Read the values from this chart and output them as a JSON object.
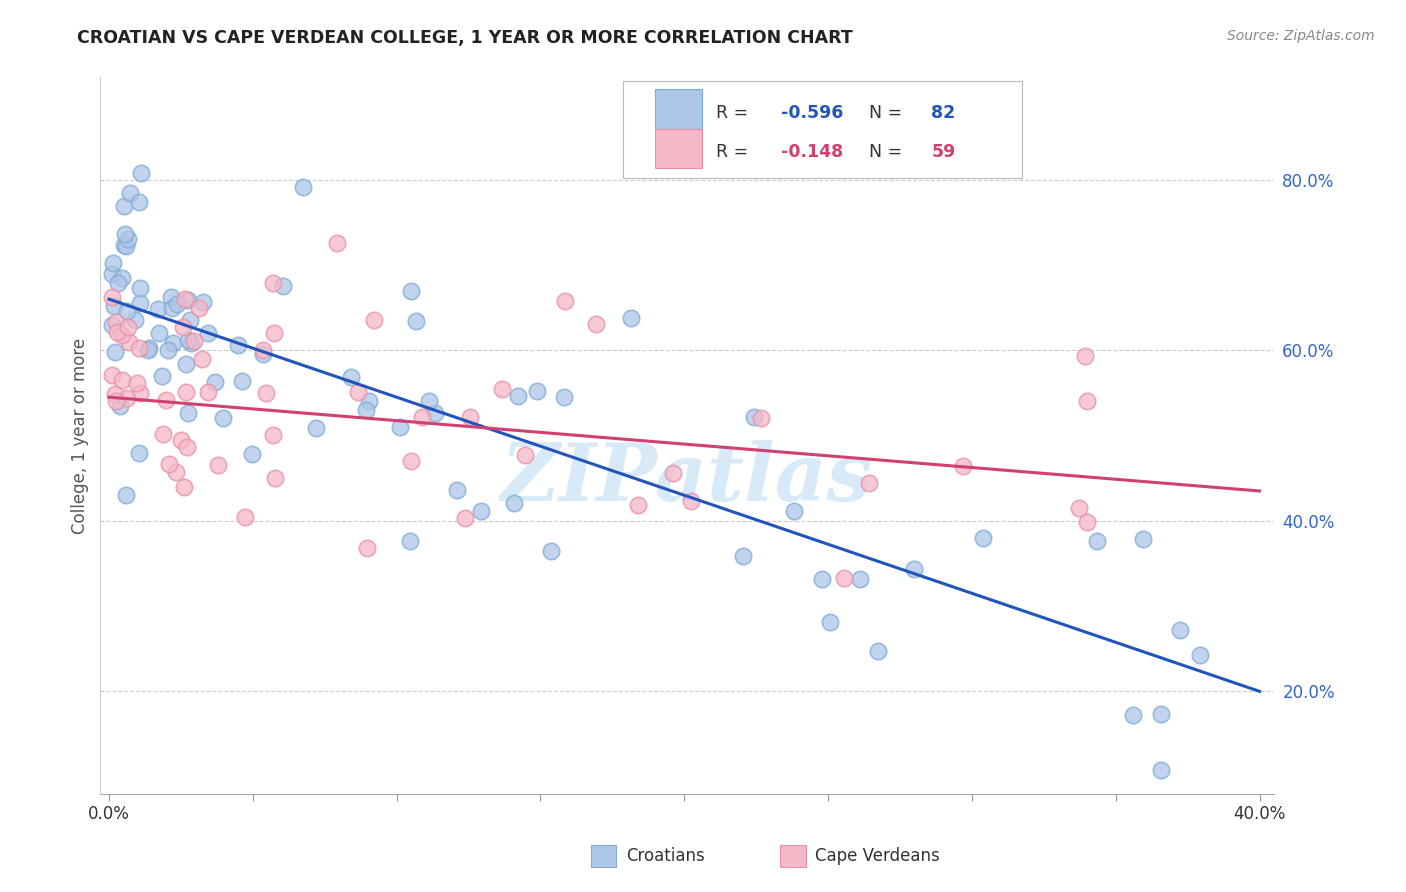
{
  "title": "CROATIAN VS CAPE VERDEAN COLLEGE, 1 YEAR OR MORE CORRELATION CHART",
  "source": "Source: ZipAtlas.com",
  "ylabel": "College, 1 year or more",
  "watermark": "ZIPatlas",
  "legend_croatian_R": -0.596,
  "legend_croatian_N": 82,
  "legend_croatian_label": "Croatians",
  "legend_capeverdean_R": -0.148,
  "legend_capeverdean_N": 59,
  "legend_capeverdean_label": "Cape Verdeans",
  "croatian_face_color": "#aec6e8",
  "croatian_edge_color": "#7fabd4",
  "capeverdean_face_color": "#f5b8c8",
  "capeverdean_edge_color": "#e890a8",
  "trend_croatian_color": "#2255bb",
  "trend_capeverdean_color": "#d04070",
  "background_color": "#ffffff",
  "grid_color": "#cccccc",
  "ytick_color": "#3366cc",
  "xtick_color": "#333333",
  "title_color": "#222222",
  "source_color": "#888888",
  "ylabel_color": "#555555",
  "watermark_color": "#d8eaf8",
  "xlim": [
    0.0,
    0.4
  ],
  "ylim": [
    0.08,
    0.92
  ],
  "yticks": [
    0.2,
    0.4,
    0.6,
    0.8
  ],
  "ytick_labels": [
    "20.0%",
    "40.0%",
    "60.0%",
    "80.0%"
  ],
  "trend_cr_x0": 0.0,
  "trend_cr_y0": 0.66,
  "trend_cr_x1": 0.4,
  "trend_cr_y1": 0.2,
  "trend_cv_x0": 0.0,
  "trend_cv_y0": 0.545,
  "trend_cv_x1": 0.4,
  "trend_cv_y1": 0.435
}
